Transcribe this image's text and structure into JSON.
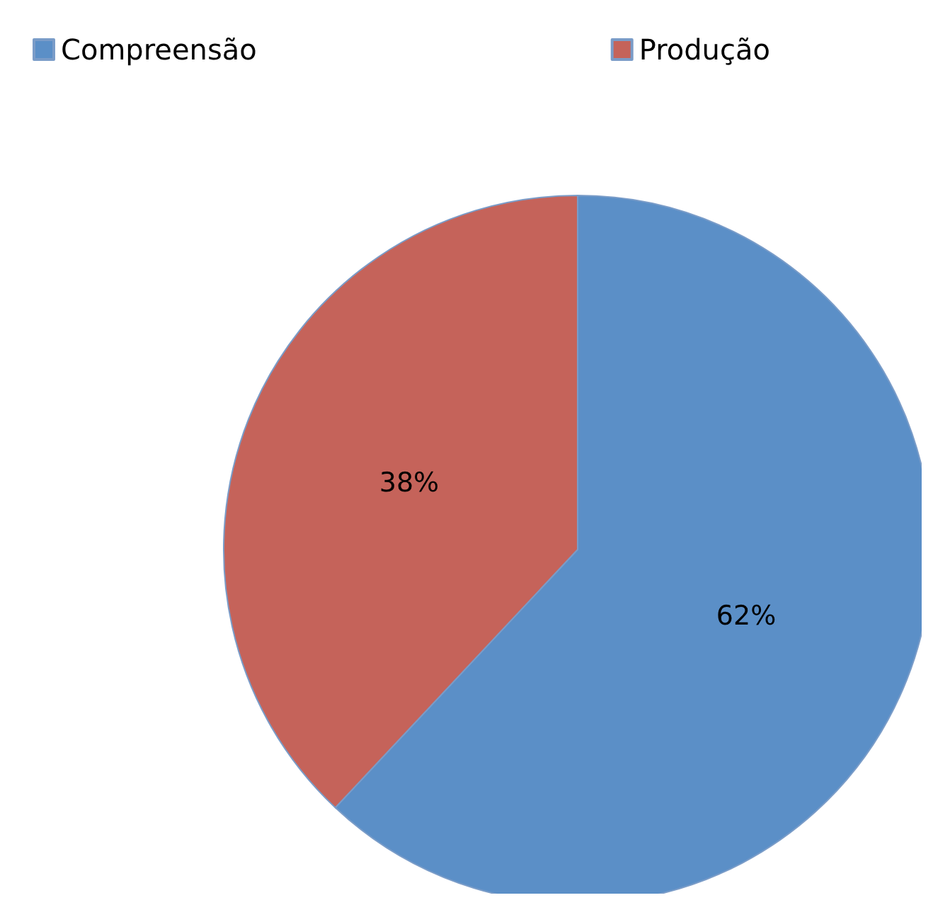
{
  "chart_data": {
    "type": "pie",
    "categories": [
      "Compreensão",
      "Produção"
    ],
    "values": [
      62,
      38
    ],
    "colors": [
      "#5b8fc7",
      "#c5635a"
    ],
    "value_labels": [
      "62%",
      "38%"
    ],
    "legend": "top"
  }
}
